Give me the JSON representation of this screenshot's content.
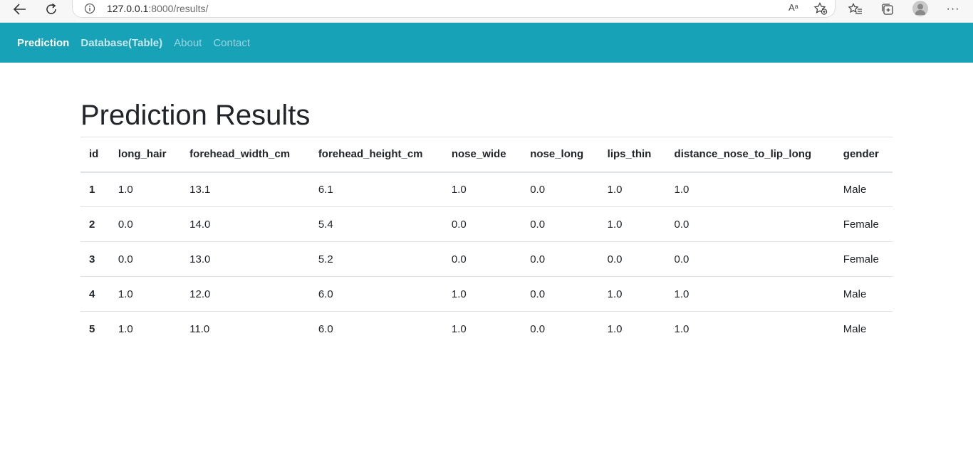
{
  "browser": {
    "url_host": "127.0.0.1",
    "url_path": ":8000/results/",
    "read_aloud": "Aᵃ"
  },
  "navbar": {
    "brand": "Prediction",
    "links": [
      "Database(Table)",
      "About",
      "Contact"
    ]
  },
  "main": {
    "title": "Prediction Results",
    "table": {
      "columns": [
        "id",
        "long_hair",
        "forehead_width_cm",
        "forehead_height_cm",
        "nose_wide",
        "nose_long",
        "lips_thin",
        "distance_nose_to_lip_long",
        "gender"
      ],
      "rows": [
        [
          "1",
          "1.0",
          "13.1",
          "6.1",
          "1.0",
          "0.0",
          "1.0",
          "1.0",
          "Male"
        ],
        [
          "2",
          "0.0",
          "14.0",
          "5.4",
          "0.0",
          "0.0",
          "1.0",
          "0.0",
          "Female"
        ],
        [
          "3",
          "0.0",
          "13.0",
          "5.2",
          "0.0",
          "0.0",
          "0.0",
          "0.0",
          "Female"
        ],
        [
          "4",
          "1.0",
          "12.0",
          "6.0",
          "1.0",
          "0.0",
          "1.0",
          "1.0",
          "Male"
        ],
        [
          "5",
          "1.0",
          "11.0",
          "6.0",
          "1.0",
          "0.0",
          "1.0",
          "1.0",
          "Male"
        ]
      ]
    }
  },
  "colors": {
    "navbar_bg": "#17a2b8",
    "text": "#212529",
    "border": "#dee2e6"
  }
}
